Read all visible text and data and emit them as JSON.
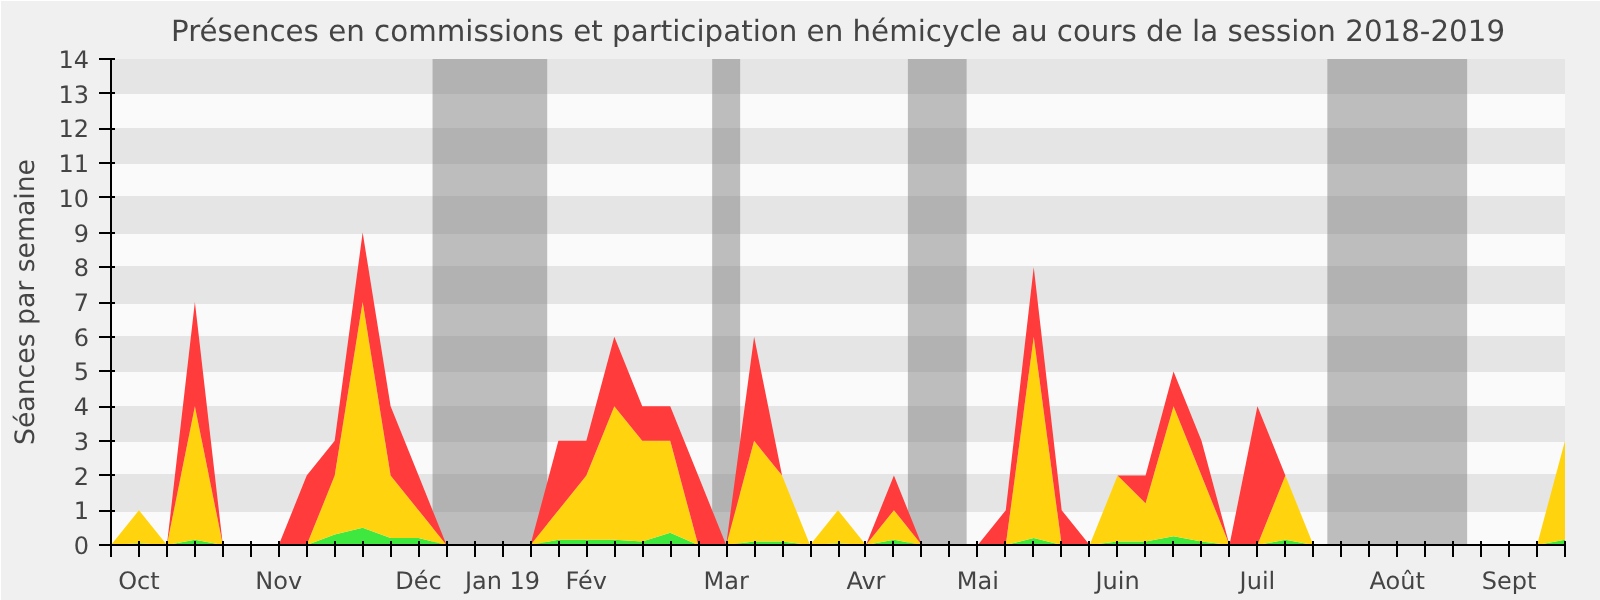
{
  "chart_data": {
    "type": "area",
    "stacked": true,
    "title": "Présences en commissions et participation en hémicycle au cours de la session 2018-2019",
    "ylabel": "Séances par semaine",
    "categories": [
      null,
      "Oct",
      null,
      null,
      null,
      null,
      "Nov",
      null,
      null,
      null,
      null,
      "Déc",
      null,
      null,
      "Jan 19",
      null,
      null,
      "Fév",
      null,
      null,
      null,
      null,
      "Mar",
      null,
      null,
      null,
      null,
      "Avr",
      null,
      null,
      null,
      "Mai",
      null,
      null,
      null,
      null,
      "Juin",
      null,
      null,
      null,
      null,
      "Juil",
      null,
      null,
      null,
      null,
      "Août",
      null,
      null,
      null,
      "Sept",
      null,
      null
    ],
    "series": [
      {
        "color": "#3ee83e",
        "values": [
          0,
          0.05,
          0,
          0.15,
          0,
          0,
          0,
          0,
          0.3,
          0.5,
          0.2,
          0.2,
          0,
          0,
          0,
          0,
          0.15,
          0.15,
          0.15,
          0.1,
          0.35,
          0,
          0,
          0.1,
          0.1,
          0,
          0.05,
          0,
          0.15,
          0,
          0,
          0,
          0,
          0.2,
          0,
          0,
          0.1,
          0.1,
          0.25,
          0.1,
          0,
          0,
          0.15,
          0,
          0,
          0,
          0,
          0,
          0,
          0,
          0,
          0,
          0.15
        ]
      },
      {
        "color": "#ffd40f",
        "values": [
          0,
          0.95,
          0,
          3.85,
          0,
          0,
          0,
          0,
          1.7,
          6.5,
          1.8,
          0.8,
          0,
          0,
          0,
          0,
          0.85,
          1.85,
          3.85,
          2.9,
          2.65,
          0,
          0,
          2.9,
          1.9,
          0,
          0.95,
          0,
          0.85,
          0,
          0,
          0,
          0,
          5.8,
          0,
          0,
          1.9,
          1.1,
          3.75,
          1.9,
          0,
          0,
          1.85,
          0,
          0,
          0,
          0,
          0,
          0,
          0,
          0,
          0,
          2.85
        ]
      },
      {
        "color": "#ff3b3b",
        "values": [
          0,
          0,
          0,
          3,
          0,
          0,
          0,
          2,
          1,
          2,
          2,
          1,
          0,
          0,
          0,
          0,
          2,
          1,
          2,
          1,
          1,
          2,
          0,
          3,
          0,
          0,
          0,
          0,
          1,
          0,
          0,
          0,
          1,
          2,
          1,
          0,
          0,
          0.8,
          1,
          1,
          0,
          4,
          0,
          0,
          0,
          0,
          0,
          0,
          0,
          0,
          0,
          0,
          0
        ]
      }
    ],
    "ylim": [
      0,
      14
    ],
    "yticks": [
      0,
      1,
      2,
      3,
      4,
      5,
      6,
      7,
      8,
      9,
      10,
      11,
      12,
      13,
      14
    ],
    "grid": "y"
  }
}
